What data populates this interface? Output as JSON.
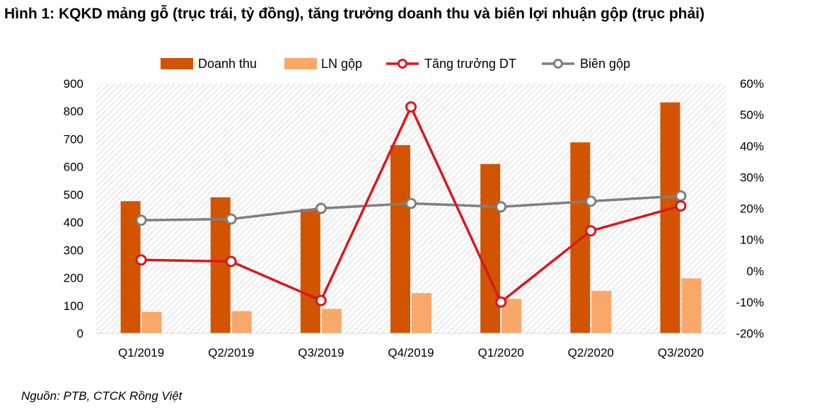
{
  "figure_title": "Hình 1: KQKD mảng gỗ (trục trái, tỷ đồng), tăng trưởng doanh thu và biên lợi nhuận gộp (trục phải)",
  "source": "Nguồn: PTB, CTCK Rồng Việt",
  "colors": {
    "doanh_thu": "#d35400",
    "ln_gop": "#f9a86a",
    "tang_truong": "#d7191c",
    "bien_gop": "#7f7f7f",
    "hatch": "#d9d9d9"
  },
  "chart_data": {
    "type": "bar",
    "categories": [
      "Q1/2019",
      "Q2/2019",
      "Q3/2019",
      "Q4/2019",
      "Q1/2020",
      "Q2/2020",
      "Q3/2020"
    ],
    "series": [
      {
        "name": "Doanh thu",
        "kind": "bar",
        "axis": "left",
        "values": [
          476,
          490,
          448,
          678,
          610,
          688,
          832
        ]
      },
      {
        "name": "LN gộp",
        "kind": "bar",
        "axis": "left",
        "values": [
          77,
          80,
          88,
          145,
          124,
          153,
          198
        ]
      },
      {
        "name": "Tăng trưởng DT",
        "kind": "line",
        "axis": "right",
        "values": [
          3.5,
          3.0,
          -9.5,
          52.5,
          -10.0,
          12.8,
          20.8
        ]
      },
      {
        "name": "Biên gộp",
        "kind": "line",
        "axis": "right",
        "values": [
          16.2,
          16.6,
          20.0,
          21.6,
          20.5,
          22.3,
          24.0
        ]
      }
    ],
    "y_left": {
      "min": 0,
      "max": 900,
      "ticks": [
        "0",
        "100",
        "200",
        "300",
        "400",
        "500",
        "600",
        "700",
        "800",
        "900"
      ]
    },
    "y_right": {
      "min": -20,
      "max": 60,
      "ticks": [
        "-20%",
        "-10%",
        "0%",
        "10%",
        "20%",
        "30%",
        "40%",
        "50%",
        "60%"
      ]
    },
    "legend_position": "top",
    "grid": false
  }
}
